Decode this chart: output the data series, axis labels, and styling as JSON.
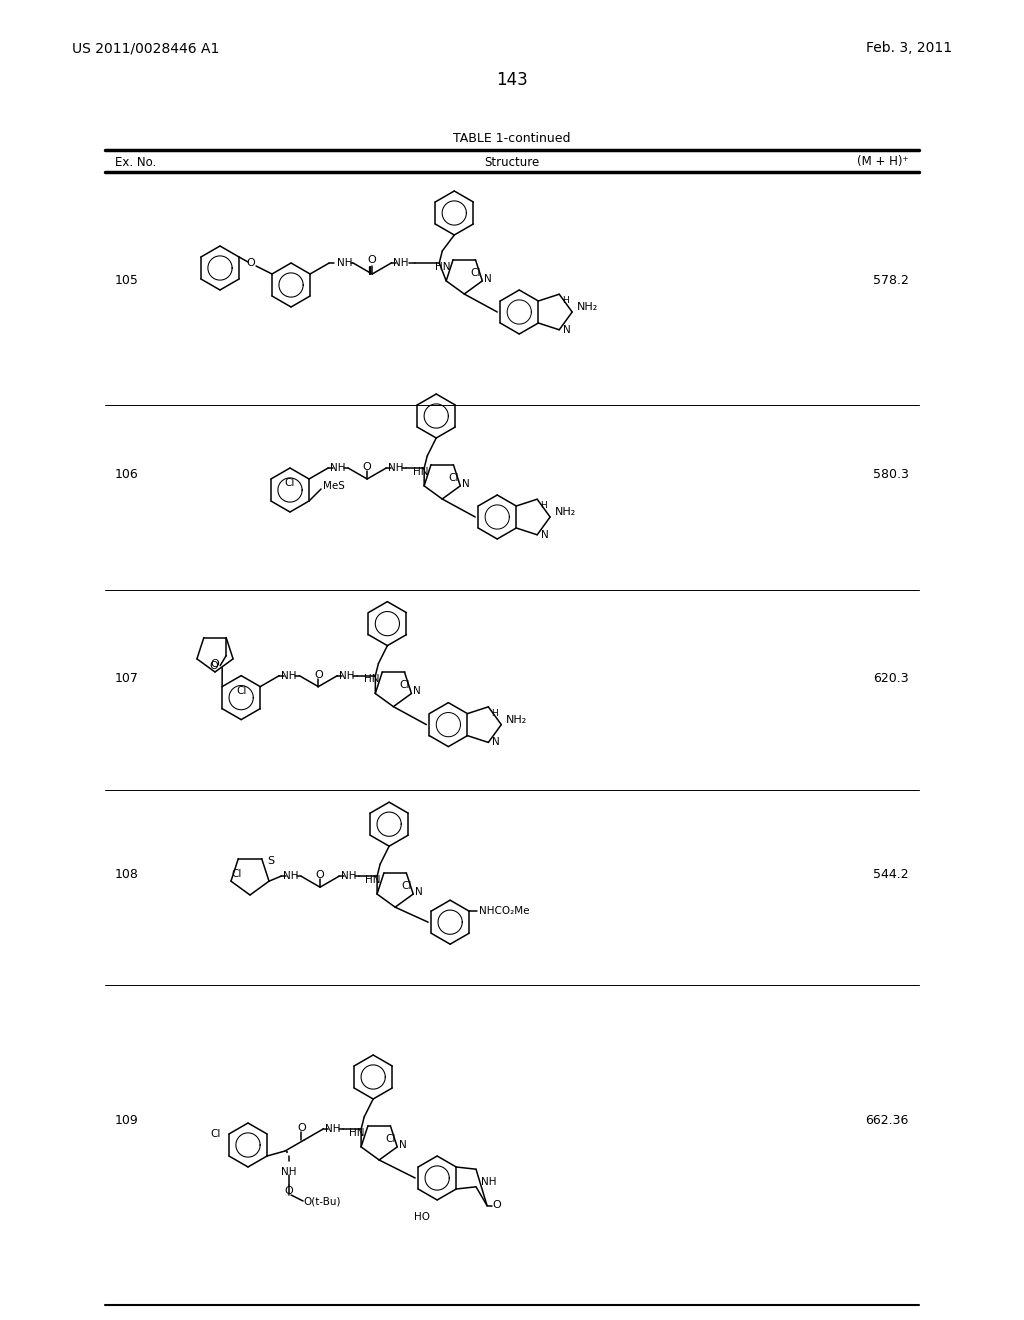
{
  "page_number": "143",
  "patent_number": "US 2011/0028446 A1",
  "patent_date": "Feb. 3, 2011",
  "table_title": "TABLE 1-continued",
  "col_header_exno": "Ex. No.",
  "col_header_struct": "Structure",
  "col_header_mh": "(M + H)⁺",
  "background": "#ffffff",
  "rows": [
    {
      "ex_no": "105",
      "mh": "578.2"
    },
    {
      "ex_no": "106",
      "mh": "580.3"
    },
    {
      "ex_no": "107",
      "mh": "620.3"
    },
    {
      "ex_no": "108",
      "mh": "544.2"
    },
    {
      "ex_no": "109",
      "mh": "662.36"
    }
  ]
}
